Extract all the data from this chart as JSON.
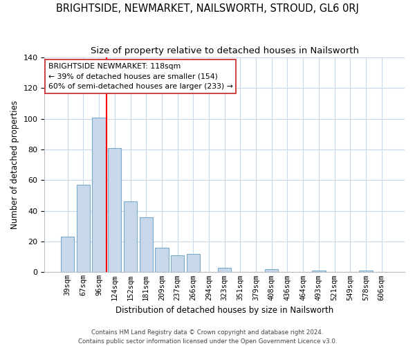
{
  "title": "BRIGHTSIDE, NEWMARKET, NAILSWORTH, STROUD, GL6 0RJ",
  "subtitle": "Size of property relative to detached houses in Nailsworth",
  "xlabel": "Distribution of detached houses by size in Nailsworth",
  "ylabel": "Number of detached properties",
  "bar_labels": [
    "39sqm",
    "67sqm",
    "96sqm",
    "124sqm",
    "152sqm",
    "181sqm",
    "209sqm",
    "237sqm",
    "266sqm",
    "294sqm",
    "323sqm",
    "351sqm",
    "379sqm",
    "408sqm",
    "436sqm",
    "464sqm",
    "493sqm",
    "521sqm",
    "549sqm",
    "578sqm",
    "606sqm"
  ],
  "bar_values": [
    23,
    57,
    101,
    81,
    46,
    36,
    16,
    11,
    12,
    0,
    3,
    0,
    0,
    2,
    0,
    0,
    1,
    0,
    0,
    1,
    0
  ],
  "bar_color": "#c8d8ea",
  "bar_edge_color": "#7aaacb",
  "vline_color": "red",
  "ylim": [
    0,
    140
  ],
  "yticks": [
    0,
    20,
    40,
    60,
    80,
    100,
    120,
    140
  ],
  "annotation_title": "BRIGHTSIDE NEWMARKET: 118sqm",
  "annotation_line1": "← 39% of detached houses are smaller (154)",
  "annotation_line2": "60% of semi-detached houses are larger (233) →",
  "footer_line1": "Contains HM Land Registry data © Crown copyright and database right 2024.",
  "footer_line2": "Contains public sector information licensed under the Open Government Licence v3.0.",
  "background_color": "#ffffff",
  "grid_color": "#c8d8e8"
}
